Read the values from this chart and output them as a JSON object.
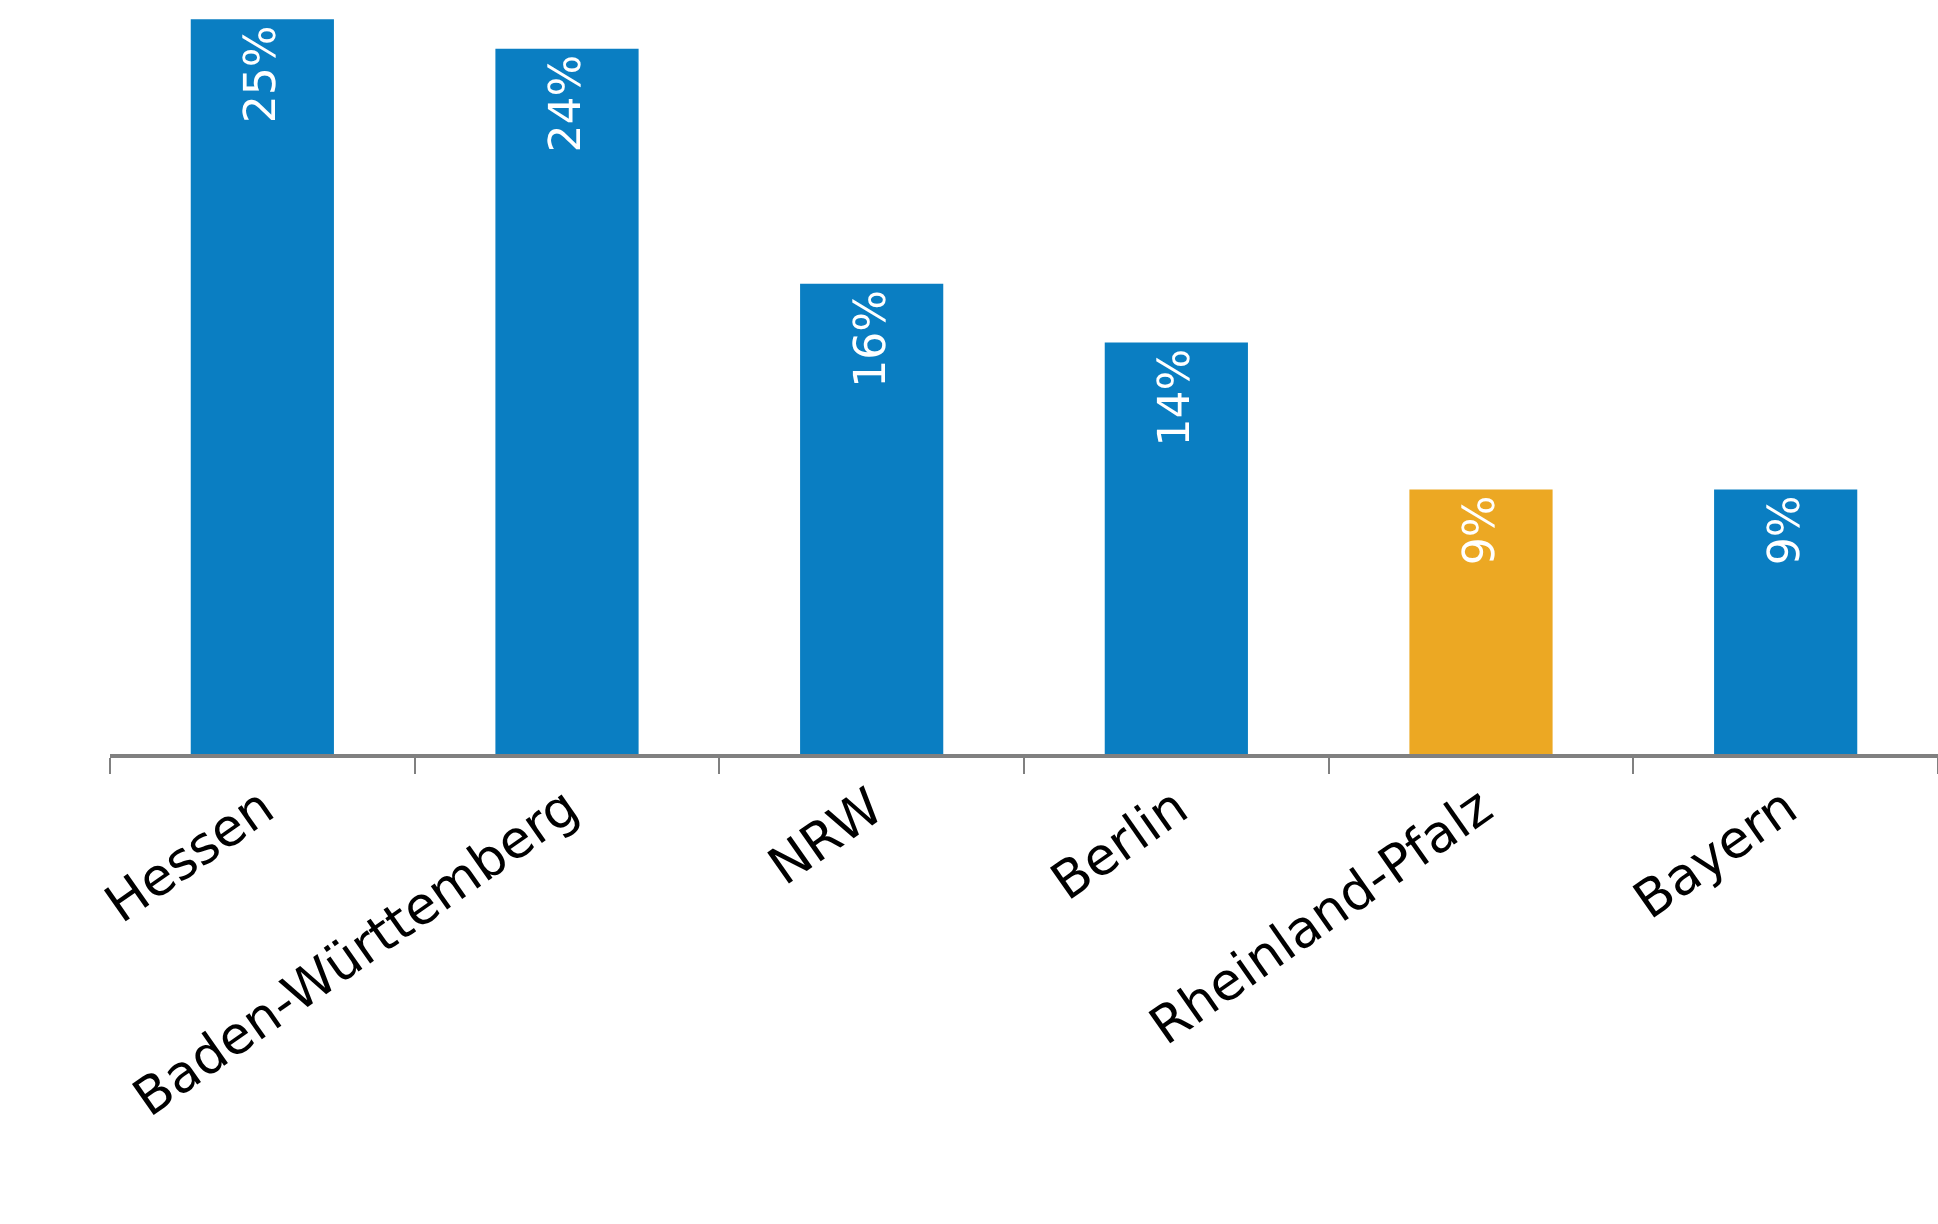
{
  "chart_data": {
    "type": "bar",
    "categories": [
      "Hessen",
      "Baden-Württemberg",
      "NRW",
      "Berlin",
      "Rheinland-Pfalz",
      "Bayern"
    ],
    "values": [
      25,
      24,
      16,
      14,
      9,
      9
    ],
    "colors": [
      "#0a7ec2",
      "#0a7ec2",
      "#0a7ec2",
      "#0a7ec2",
      "#eca823",
      "#0a7ec2"
    ],
    "value_labels": [
      "25%",
      "24%",
      "16%",
      "14%",
      "9%",
      "9%"
    ]
  }
}
